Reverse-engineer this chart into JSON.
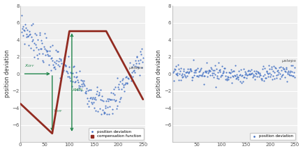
{
  "left_xlim": [
    0,
    255
  ],
  "left_ylim": [
    -8,
    8
  ],
  "left_xticks": [
    0,
    50,
    100,
    150,
    200,
    250
  ],
  "left_yticks": [
    -6,
    -4,
    -2,
    0,
    2,
    4,
    6,
    8
  ],
  "right_xlim": [
    0,
    255
  ],
  "right_ylim": [
    -8,
    8
  ],
  "right_xticks": [
    50,
    100,
    150,
    200,
    250
  ],
  "right_yticks": [
    -6,
    -4,
    -2,
    0,
    2,
    4,
    6,
    8
  ],
  "tri_x": [
    0,
    65,
    100,
    175,
    250
  ],
  "tri_y": [
    -3.5,
    -7.0,
    5.0,
    5.0,
    -3.0
  ],
  "scatter_color": "#4472C4",
  "tri_color": "#922B21",
  "arrow_color": "#1E8449",
  "ylabel": "position deviation",
  "usteps": "μsteps",
  "legend_dot_color": "#4472C4",
  "legend_sq_color": "#922B21",
  "legend_left_1": "position deviation",
  "legend_left_2": "compensation function",
  "legend_right_1": "position deviation",
  "bg_color": "#FFFFFF",
  "plot_bg": "#EFEFEF",
  "grid_color": "#FFFFFF",
  "spine_color": "#AAAAAA",
  "tick_label_color": "#555555",
  "ylabel_color": "#333333",
  "figsize": [
    4.35,
    2.17
  ],
  "dpi": 100
}
